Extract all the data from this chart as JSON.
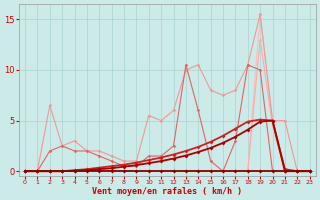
{
  "background_color": "#cceae8",
  "grid_color": "#aad4d2",
  "xlabel": "Vent moyen/en rafales ( km/h )",
  "xlim": [
    -0.5,
    23.5
  ],
  "ylim": [
    -0.5,
    16.5
  ],
  "yticks": [
    0,
    5,
    10,
    15
  ],
  "xticks": [
    0,
    1,
    2,
    3,
    4,
    5,
    6,
    7,
    8,
    9,
    10,
    11,
    12,
    13,
    14,
    15,
    16,
    17,
    18,
    19,
    20,
    21,
    22,
    23
  ],
  "series": [
    {
      "x": [
        0,
        1,
        2,
        3,
        4,
        5,
        6,
        7,
        8,
        9,
        10,
        11,
        12,
        13,
        14,
        15,
        16,
        17,
        18,
        19,
        20,
        21,
        22,
        23
      ],
      "y": [
        0,
        0,
        0,
        0,
        0,
        0,
        0,
        0,
        0,
        0,
        0,
        0,
        0,
        0,
        0,
        0,
        0,
        0,
        0,
        15.5,
        5.0,
        0.0,
        0.0,
        0.0
      ],
      "color": "#ffbbbb",
      "lw": 0.8,
      "marker": "D",
      "ms": 1.5,
      "zorder": 1
    },
    {
      "x": [
        0,
        1,
        2,
        3,
        4,
        5,
        6,
        7,
        8,
        9,
        10,
        11,
        12,
        13,
        14,
        15,
        16,
        17,
        18,
        19,
        20,
        21,
        22,
        23
      ],
      "y": [
        0,
        0,
        0,
        0,
        0,
        0,
        0,
        0,
        0,
        0,
        0,
        0,
        0,
        0,
        0,
        0,
        0,
        0,
        0,
        13.0,
        4.5,
        0.0,
        0.0,
        0.0
      ],
      "color": "#ffaaaa",
      "lw": 0.8,
      "marker": "D",
      "ms": 1.5,
      "zorder": 2
    },
    {
      "x": [
        0,
        1,
        2,
        3,
        4,
        5,
        6,
        7,
        8,
        9,
        10,
        11,
        12,
        13,
        14,
        15,
        16,
        17,
        18,
        19,
        20,
        21,
        22,
        23
      ],
      "y": [
        0,
        0,
        6.5,
        2.5,
        3.0,
        2.0,
        2.0,
        1.5,
        1.0,
        1.0,
        5.5,
        5.0,
        6.0,
        10.0,
        10.5,
        8.0,
        7.5,
        8.0,
        10.5,
        15.5,
        5.0,
        5.0,
        0.0,
        0.0
      ],
      "color": "#ee9999",
      "lw": 0.8,
      "marker": "D",
      "ms": 1.8,
      "zorder": 3
    },
    {
      "x": [
        0,
        1,
        2,
        3,
        4,
        5,
        6,
        7,
        8,
        9,
        10,
        11,
        12,
        13,
        14,
        15,
        16,
        17,
        18,
        19,
        20,
        21,
        22,
        23
      ],
      "y": [
        0,
        0,
        2.0,
        2.5,
        2.0,
        2.0,
        1.5,
        1.0,
        0.5,
        0.5,
        1.5,
        1.5,
        2.5,
        10.5,
        6.0,
        1.0,
        0.0,
        3.0,
        10.5,
        10.0,
        0.0,
        0.0,
        0.0,
        0.0
      ],
      "color": "#dd6666",
      "lw": 0.8,
      "marker": "D",
      "ms": 1.8,
      "zorder": 4
    },
    {
      "x": [
        0,
        1,
        2,
        3,
        4,
        5,
        6,
        7,
        8,
        9,
        10,
        11,
        12,
        13,
        14,
        15,
        16,
        17,
        18,
        19,
        20,
        21,
        22,
        23
      ],
      "y": [
        0,
        0,
        0,
        0,
        0.1,
        0.2,
        0.35,
        0.5,
        0.65,
        0.85,
        1.1,
        1.35,
        1.65,
        2.0,
        2.4,
        2.9,
        3.5,
        4.2,
        4.9,
        5.1,
        5.0,
        0.2,
        0.0,
        0.0
      ],
      "color": "#cc2222",
      "lw": 1.3,
      "marker": "D",
      "ms": 2.0,
      "zorder": 5
    },
    {
      "x": [
        0,
        1,
        2,
        3,
        4,
        5,
        6,
        7,
        8,
        9,
        10,
        11,
        12,
        13,
        14,
        15,
        16,
        17,
        18,
        19,
        20,
        21,
        22,
        23
      ],
      "y": [
        0,
        0,
        0,
        0,
        0.05,
        0.1,
        0.2,
        0.3,
        0.45,
        0.6,
        0.8,
        1.0,
        1.25,
        1.55,
        1.9,
        2.3,
        2.8,
        3.4,
        4.1,
        4.9,
        5.0,
        0.0,
        0.0,
        0.0
      ],
      "color": "#aa0000",
      "lw": 1.3,
      "marker": "D",
      "ms": 2.0,
      "zorder": 6
    },
    {
      "x": [
        0,
        1,
        2,
        3,
        4,
        5,
        6,
        7,
        8,
        9,
        10,
        11,
        12,
        13,
        14,
        15,
        16,
        17,
        18,
        19,
        20,
        21,
        22,
        23
      ],
      "y": [
        0,
        0,
        0,
        0,
        0,
        0,
        0,
        0,
        0,
        0,
        0,
        0,
        0,
        0,
        0,
        0,
        0,
        0,
        0,
        0,
        0,
        0,
        0,
        0
      ],
      "color": "#880000",
      "lw": 1.3,
      "marker": "D",
      "ms": 2.0,
      "zorder": 7
    }
  ]
}
